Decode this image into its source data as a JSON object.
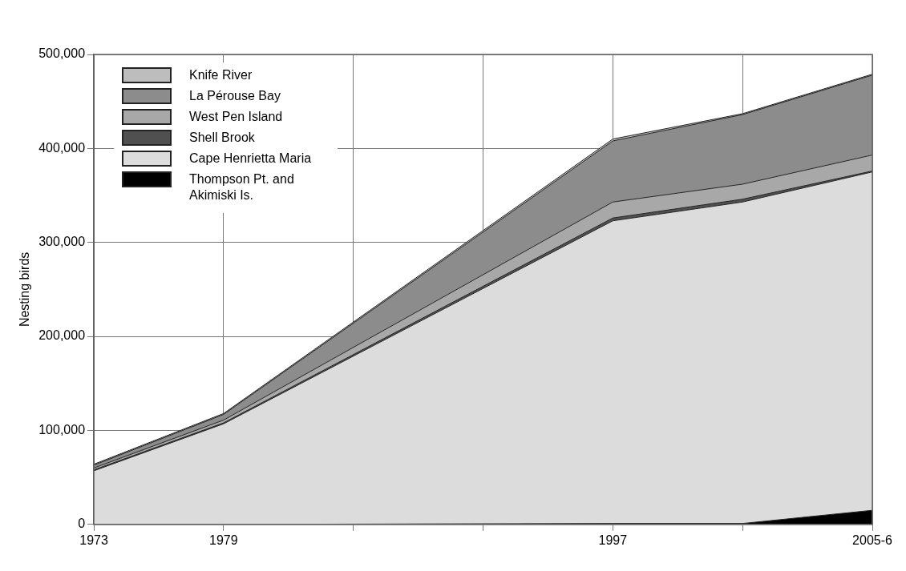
{
  "chart_data": {
    "type": "area",
    "stacked": true,
    "ylabel": "Nesting birds",
    "x": [
      1973,
      1979,
      1997,
      2003,
      2009
    ],
    "xlim": [
      1973,
      2009
    ],
    "xticks": [
      1973,
      1979,
      {
        "value": 1985,
        "label": null
      },
      {
        "value": 1991,
        "label": null
      },
      1997,
      {
        "value": 2003,
        "label": null
      },
      {
        "value": 2009,
        "label": "2005-6"
      }
    ],
    "ylim": [
      0,
      500000
    ],
    "yticks": [
      0,
      {
        "value": 100000,
        "label": "100,000"
      },
      {
        "value": 200000,
        "label": "200,000"
      },
      {
        "value": 300000,
        "label": "300,000"
      },
      {
        "value": 400000,
        "label": "400,000"
      },
      {
        "value": 500000,
        "label": "500,000"
      }
    ],
    "grid": true,
    "legend": "top left",
    "series": [
      {
        "name": "Thompson Pt. and Akimiski Is.",
        "color": "#000000",
        "values": [
          0,
          0,
          1000,
          1000,
          15000
        ]
      },
      {
        "name": "Cape Henrietta Maria",
        "color": "#dcdcdc",
        "values": [
          57000,
          107000,
          322000,
          342000,
          360000
        ]
      },
      {
        "name": "Shell Brook",
        "color": "#505050",
        "values": [
          1000,
          1000,
          3000,
          3000,
          1000
        ]
      },
      {
        "name": "West Pen  Island",
        "color": "#a8a8a8",
        "values": [
          2000,
          3000,
          17000,
          16000,
          17000
        ]
      },
      {
        "name": "La Pérouse Bay",
        "color": "#8c8c8c",
        "values": [
          3000,
          6000,
          65000,
          74000,
          85000
        ]
      },
      {
        "name": "Knife River",
        "color": "#bdbdbd",
        "values": [
          1000,
          1000,
          2000,
          1000,
          1000
        ]
      }
    ]
  }
}
